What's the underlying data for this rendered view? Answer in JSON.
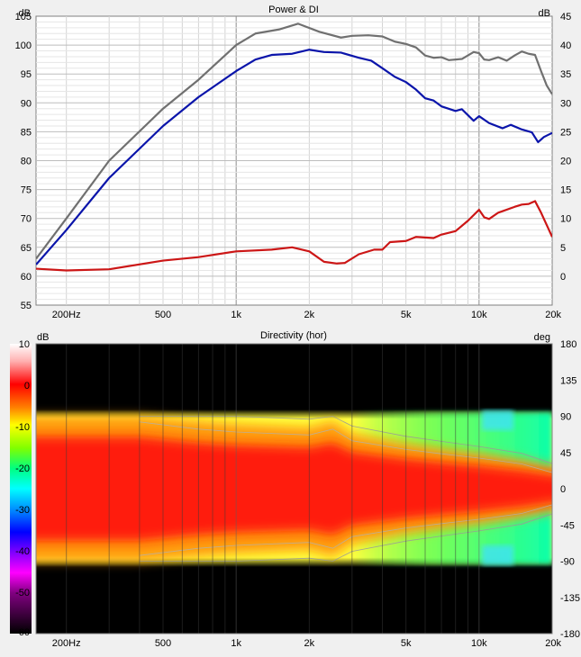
{
  "chart_data": [
    {
      "type": "line",
      "title": "Power & DI",
      "x_scale": "log",
      "xlim": [
        150,
        20000
      ],
      "x_ticks": [
        {
          "value": 200,
          "label": "200Hz"
        },
        {
          "value": 500,
          "label": "500"
        },
        {
          "value": 1000,
          "label": "1k"
        },
        {
          "value": 2000,
          "label": "2k"
        },
        {
          "value": 5000,
          "label": "5k"
        },
        {
          "value": 10000,
          "label": "10k"
        },
        {
          "value": 20000,
          "label": "20k"
        }
      ],
      "y_left": {
        "unit": "dB",
        "lim": [
          55,
          105
        ],
        "ticks": [
          55,
          60,
          65,
          70,
          75,
          80,
          85,
          90,
          95,
          100,
          105
        ]
      },
      "y_right": {
        "unit": "dB",
        "lim": [
          -5,
          45
        ],
        "ticks": [
          0,
          5,
          10,
          15,
          20,
          25,
          30,
          35,
          40,
          45
        ]
      },
      "grid": true,
      "series": [
        {
          "color": "#707070",
          "axis": "left",
          "points": [
            [
              150,
              63
            ],
            [
              200,
              70
            ],
            [
              300,
              80
            ],
            [
              500,
              89
            ],
            [
              700,
              94
            ],
            [
              1000,
              100
            ],
            [
              1200,
              102
            ],
            [
              1500,
              102.7
            ],
            [
              1800,
              103.7
            ],
            [
              2200,
              102.3
            ],
            [
              2700,
              101.3
            ],
            [
              3000,
              101.6
            ],
            [
              3500,
              101.7
            ],
            [
              4000,
              101.5
            ],
            [
              4500,
              100.6
            ],
            [
              5000,
              100.2
            ],
            [
              5500,
              99.6
            ],
            [
              6000,
              98.2
            ],
            [
              6500,
              97.8
            ],
            [
              7000,
              97.9
            ],
            [
              7500,
              97.4
            ],
            [
              8500,
              97.6
            ],
            [
              9500,
              98.8
            ],
            [
              10000,
              98.6
            ],
            [
              10500,
              97.5
            ],
            [
              11000,
              97.4
            ],
            [
              12000,
              97.9
            ],
            [
              13000,
              97.3
            ],
            [
              14000,
              98.2
            ],
            [
              15000,
              98.9
            ],
            [
              16000,
              98.5
            ],
            [
              17000,
              98.3
            ],
            [
              18000,
              95.5
            ],
            [
              19000,
              93
            ],
            [
              20000,
              91.5
            ]
          ]
        },
        {
          "color": "#0a14aa",
          "axis": "left",
          "points": [
            [
              150,
              62
            ],
            [
              200,
              68
            ],
            [
              300,
              77
            ],
            [
              500,
              86
            ],
            [
              700,
              91
            ],
            [
              1000,
              95.5
            ],
            [
              1200,
              97.5
            ],
            [
              1400,
              98.3
            ],
            [
              1700,
              98.5
            ],
            [
              2000,
              99.2
            ],
            [
              2300,
              98.8
            ],
            [
              2700,
              98.7
            ],
            [
              3200,
              97.8
            ],
            [
              3600,
              97.3
            ],
            [
              4000,
              96
            ],
            [
              4500,
              94.5
            ],
            [
              5000,
              93.6
            ],
            [
              5500,
              92.3
            ],
            [
              6000,
              90.8
            ],
            [
              6500,
              90.4
            ],
            [
              7000,
              89.4
            ],
            [
              8000,
              88.6
            ],
            [
              8500,
              88.9
            ],
            [
              9500,
              86.9
            ],
            [
              10000,
              87.7
            ],
            [
              11000,
              86.5
            ],
            [
              12500,
              85.6
            ],
            [
              13500,
              86.2
            ],
            [
              15000,
              85.4
            ],
            [
              16500,
              84.9
            ],
            [
              17500,
              83.2
            ],
            [
              18500,
              84.1
            ],
            [
              20000,
              84.8
            ]
          ]
        },
        {
          "color": "#cc1616",
          "axis": "right",
          "points": [
            [
              150,
              1.3
            ],
            [
              200,
              1
            ],
            [
              300,
              1.2
            ],
            [
              500,
              2.7
            ],
            [
              700,
              3.3
            ],
            [
              1000,
              4.3
            ],
            [
              1400,
              4.6
            ],
            [
              1700,
              5
            ],
            [
              2000,
              4.3
            ],
            [
              2300,
              2.5
            ],
            [
              2600,
              2.2
            ],
            [
              2800,
              2.3
            ],
            [
              3200,
              3.8
            ],
            [
              3700,
              4.6
            ],
            [
              4000,
              4.6
            ],
            [
              4300,
              5.9
            ],
            [
              5000,
              6.1
            ],
            [
              5500,
              6.8
            ],
            [
              6500,
              6.6
            ],
            [
              7000,
              7.2
            ],
            [
              8000,
              7.8
            ],
            [
              9000,
              9.6
            ],
            [
              10000,
              11.5
            ],
            [
              10500,
              10.2
            ],
            [
              11000,
              9.9
            ],
            [
              12000,
              11
            ],
            [
              14000,
              12
            ],
            [
              15000,
              12.4
            ],
            [
              16000,
              12.5
            ],
            [
              17000,
              13
            ],
            [
              18000,
              11
            ],
            [
              20000,
              6.8
            ]
          ]
        }
      ]
    },
    {
      "type": "heatmap",
      "title": "Directivity (hor)",
      "x_scale": "log",
      "xlim": [
        150,
        20000
      ],
      "x_ticks": [
        {
          "value": 200,
          "label": "200Hz"
        },
        {
          "value": 500,
          "label": "500"
        },
        {
          "value": 1000,
          "label": "1k"
        },
        {
          "value": 2000,
          "label": "2k"
        },
        {
          "value": 5000,
          "label": "5k"
        },
        {
          "value": 10000,
          "label": "10k"
        },
        {
          "value": 20000,
          "label": "20k"
        }
      ],
      "y_right": {
        "unit": "deg",
        "lim": [
          -180,
          180
        ],
        "ticks": [
          180,
          135,
          90,
          45,
          0,
          -45,
          -90,
          -135,
          -180
        ]
      },
      "colorbar": {
        "unit": "dB",
        "lim": [
          -60,
          10
        ],
        "ticks": [
          10,
          0,
          -10,
          -20,
          -30,
          -40,
          -50,
          -60
        ]
      },
      "angle_limit_deg": 90,
      "beamwidth_6db_deg": [
        [
          150,
          90
        ],
        [
          400,
          90
        ],
        [
          700,
          80
        ],
        [
          1000,
          76
        ],
        [
          2000,
          72
        ],
        [
          2500,
          80
        ],
        [
          3000,
          64
        ],
        [
          5000,
          52
        ],
        [
          7000,
          46
        ],
        [
          10000,
          40
        ],
        [
          15000,
          32
        ],
        [
          20000,
          20
        ]
      ]
    }
  ]
}
